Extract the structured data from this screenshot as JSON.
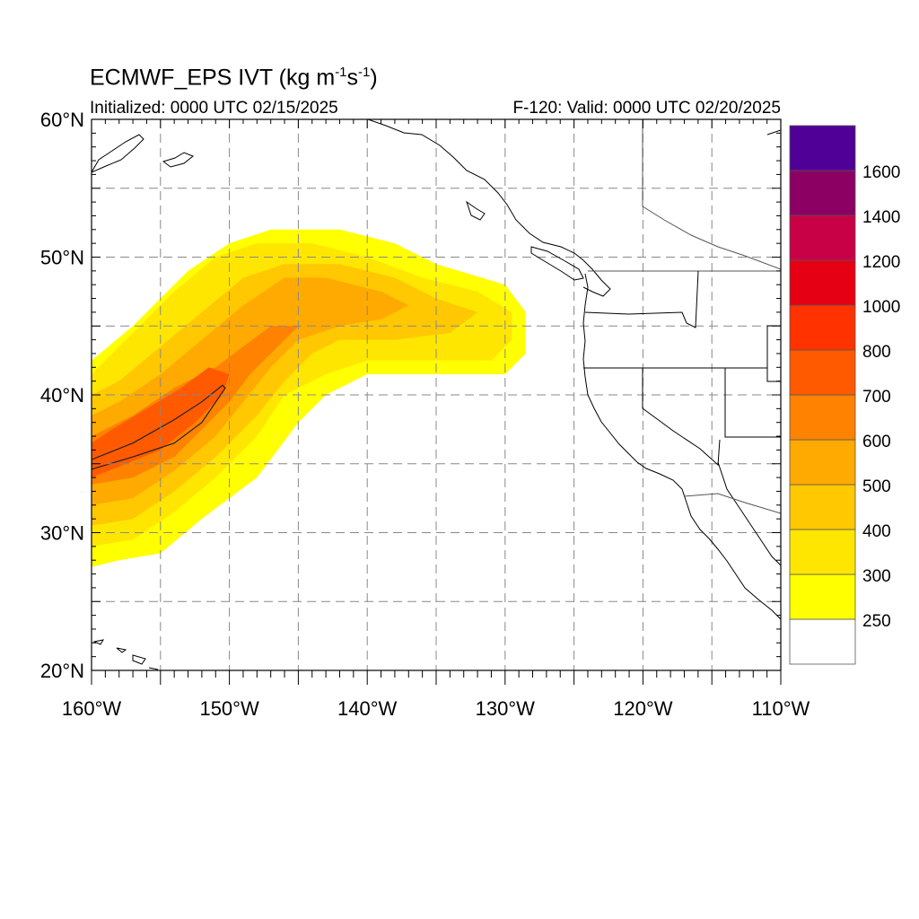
{
  "header": {
    "title_main": "ECMWF_EPS IVT (kg m",
    "title_exp1": "-1",
    "title_mid": "s",
    "title_exp2": "-1",
    "title_end": ")",
    "initialized": "Initialized: 0000 UTC 02/15/2025",
    "valid": "F-120: Valid: 0000 UTC 02/20/2025"
  },
  "map": {
    "lon_range": [
      -160,
      -110
    ],
    "lat_range": [
      20,
      60
    ],
    "lon_ticks": [
      {
        "value": -160,
        "label": "160°W"
      },
      {
        "value": -150,
        "label": "150°W"
      },
      {
        "value": -140,
        "label": "140°W"
      },
      {
        "value": -130,
        "label": "130°W"
      },
      {
        "value": -120,
        "label": "120°W"
      },
      {
        "value": -110,
        "label": "110°W"
      }
    ],
    "lat_ticks": [
      {
        "value": 60,
        "label": "60°N"
      },
      {
        "value": 50,
        "label": "50°N"
      },
      {
        "value": 40,
        "label": "40°N"
      },
      {
        "value": 30,
        "label": "30°N"
      },
      {
        "value": 20,
        "label": "20°N"
      }
    ],
    "grid_spacing_deg": 5,
    "grid_style": "dashed"
  },
  "colorbar": {
    "levels": [
      250,
      300,
      400,
      500,
      600,
      700,
      800,
      1000,
      1200,
      1400,
      1600
    ],
    "labels": [
      "250",
      "300",
      "400",
      "500",
      "600",
      "700",
      "800",
      "1000",
      "1200",
      "1400",
      "1600"
    ],
    "colors": [
      "#ffffff",
      "#ffff00",
      "#ffe600",
      "#ffc800",
      "#ffaa00",
      "#ff8200",
      "#ff5a00",
      "#ff3200",
      "#e60014",
      "#c80046",
      "#8c0064",
      "#500096"
    ]
  },
  "chart_data": {
    "type": "heatmap",
    "variable": "IVT",
    "units": "kg m-1 s-1",
    "field_regions": [
      {
        "min_value": 250,
        "outline": [
          [
            -160,
            27.5
          ],
          [
            -158,
            28
          ],
          [
            -155,
            28.5
          ],
          [
            -152,
            31
          ],
          [
            -148,
            34
          ],
          [
            -145,
            38
          ],
          [
            -143,
            40
          ],
          [
            -140,
            41.5
          ],
          [
            -135,
            41.5
          ],
          [
            -130,
            41.5
          ],
          [
            -128.5,
            43
          ],
          [
            -128.5,
            46
          ],
          [
            -130,
            48
          ],
          [
            -135,
            49.5
          ],
          [
            -138,
            51
          ],
          [
            -142,
            52
          ],
          [
            -147,
            52
          ],
          [
            -150,
            51
          ],
          [
            -153,
            49
          ],
          [
            -157,
            45
          ],
          [
            -160,
            42.5
          ]
        ]
      },
      {
        "min_value": 300,
        "outline": [
          [
            -160,
            29
          ],
          [
            -157,
            29.5
          ],
          [
            -154,
            31.5
          ],
          [
            -151,
            34
          ],
          [
            -148,
            37
          ],
          [
            -146,
            40
          ],
          [
            -143,
            41.5
          ],
          [
            -140,
            42.5
          ],
          [
            -135,
            42.5
          ],
          [
            -131,
            42.5
          ],
          [
            -129.5,
            44
          ],
          [
            -129.5,
            46
          ],
          [
            -132,
            47.5
          ],
          [
            -136,
            48.5
          ],
          [
            -140,
            50
          ],
          [
            -144,
            51
          ],
          [
            -148,
            51
          ],
          [
            -151,
            50
          ],
          [
            -154,
            47.5
          ],
          [
            -157,
            44.5
          ],
          [
            -160,
            41.5
          ]
        ]
      },
      {
        "min_value": 400,
        "outline": [
          [
            -160,
            30.5
          ],
          [
            -157,
            31
          ],
          [
            -154,
            33
          ],
          [
            -151,
            35.5
          ],
          [
            -148,
            38.5
          ],
          [
            -146,
            41
          ],
          [
            -144,
            43
          ],
          [
            -142,
            44
          ],
          [
            -138,
            44
          ],
          [
            -134,
            44.5
          ],
          [
            -132,
            46
          ],
          [
            -135,
            47
          ],
          [
            -138,
            48.5
          ],
          [
            -142,
            49.5
          ],
          [
            -146,
            49.5
          ],
          [
            -149,
            48.5
          ],
          [
            -152,
            46
          ],
          [
            -155,
            43.5
          ],
          [
            -158,
            41
          ],
          [
            -160,
            40
          ]
        ]
      },
      {
        "min_value": 500,
        "outline": [
          [
            -160,
            32
          ],
          [
            -157,
            32.5
          ],
          [
            -154,
            34.5
          ],
          [
            -151,
            37
          ],
          [
            -149,
            39.5
          ],
          [
            -147,
            42
          ],
          [
            -145,
            44
          ],
          [
            -142,
            45
          ],
          [
            -139,
            45.5
          ],
          [
            -137,
            46.5
          ],
          [
            -139,
            47.5
          ],
          [
            -143,
            48.5
          ],
          [
            -146,
            48.5
          ],
          [
            -149,
            46.5
          ],
          [
            -152,
            44
          ],
          [
            -155,
            41.5
          ],
          [
            -158,
            39.5
          ],
          [
            -160,
            38.5
          ]
        ]
      },
      {
        "min_value": 600,
        "outline": [
          [
            -160,
            33.5
          ],
          [
            -157,
            34
          ],
          [
            -154,
            35.5
          ],
          [
            -152,
            37.5
          ],
          [
            -150,
            39.5
          ],
          [
            -148.5,
            41.5
          ],
          [
            -146.5,
            43.5
          ],
          [
            -145,
            45
          ],
          [
            -147,
            45
          ],
          [
            -149,
            43.5
          ],
          [
            -151,
            42
          ],
          [
            -154,
            40.5
          ],
          [
            -157,
            38.5
          ],
          [
            -160,
            37
          ]
        ]
      },
      {
        "min_value": 700,
        "outline": [
          [
            -160,
            34
          ],
          [
            -157.5,
            35
          ],
          [
            -155,
            36
          ],
          [
            -152.5,
            38
          ],
          [
            -150.5,
            40
          ],
          [
            -150,
            41.5
          ],
          [
            -151.5,
            42
          ],
          [
            -153.5,
            40.5
          ],
          [
            -156,
            39
          ],
          [
            -158.5,
            37.5
          ],
          [
            -160,
            36.5
          ]
        ]
      }
    ],
    "contours": [
      {
        "level": 800,
        "outline": [
          [
            -160,
            34.6
          ],
          [
            -157,
            35.5
          ],
          [
            -154,
            36.5
          ],
          [
            -152,
            38
          ],
          [
            -150.3,
            40.5
          ],
          [
            -150.5,
            40.7
          ],
          [
            -152,
            39.5
          ],
          [
            -154,
            38.2
          ],
          [
            -157,
            36.5
          ],
          [
            -160,
            35.3
          ]
        ]
      }
    ]
  }
}
